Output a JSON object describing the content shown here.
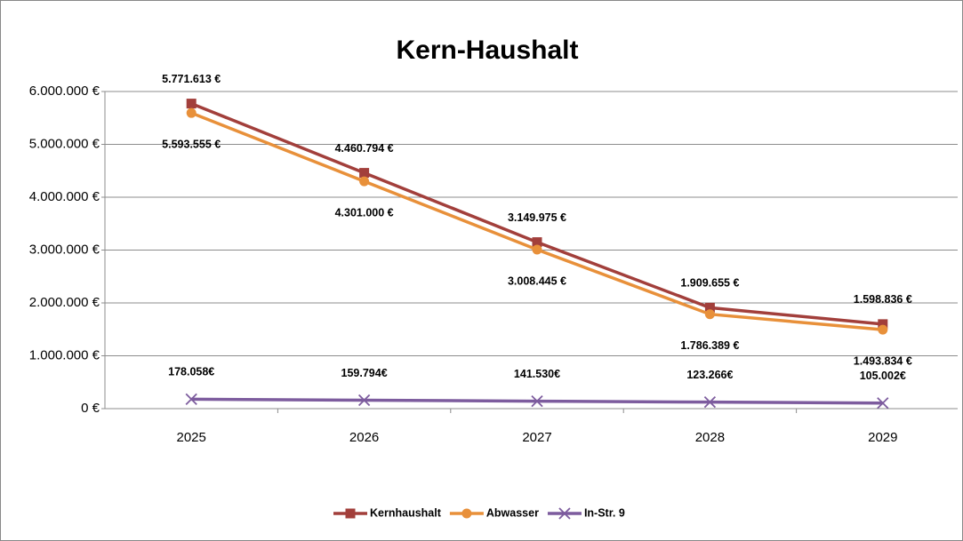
{
  "chart_data": {
    "type": "line",
    "title": "Kern-Haushalt",
    "categories": [
      "2025",
      "2026",
      "2027",
      "2028",
      "2029"
    ],
    "series": [
      {
        "name": "Kernhaushalt",
        "color": "#a23f3b",
        "marker": "square",
        "values": [
          5771613,
          4460794,
          3149975,
          1909655,
          1598836
        ],
        "value_labels": [
          "5.771.613 €",
          "4.460.794 €",
          "3.149.975 €",
          "1.909.655 €",
          "1.598.836 €"
        ]
      },
      {
        "name": "Abwasser",
        "color": "#e8903a",
        "marker": "circle",
        "values": [
          5593555,
          4301000,
          3008445,
          1786389,
          1493834
        ],
        "value_labels": [
          "5.593.555 €",
          "4.301.000 €",
          "3.008.445 €",
          "1.786.389 €",
          "1.493.834 €"
        ]
      },
      {
        "name": "In-Str. 9",
        "color": "#7d5c9e",
        "marker": "x",
        "values": [
          178058,
          159794,
          141530,
          123266,
          105002
        ],
        "value_labels": [
          "178.058€",
          "159.794€",
          "141.530€",
          "123.266€",
          "105.002€"
        ]
      }
    ],
    "ylim": [
      0,
      6000000
    ],
    "yticks": [
      {
        "value": 0,
        "label": "0 €"
      },
      {
        "value": 1000000,
        "label": "1.000.000 €"
      },
      {
        "value": 2000000,
        "label": "2.000.000 €"
      },
      {
        "value": 3000000,
        "label": "3.000.000 €"
      },
      {
        "value": 4000000,
        "label": "4.000.000 €"
      },
      {
        "value": 5000000,
        "label": "5.000.000 €"
      },
      {
        "value": 6000000,
        "label": "6.000.000 €"
      }
    ],
    "grid": true,
    "legend": "bottom"
  }
}
